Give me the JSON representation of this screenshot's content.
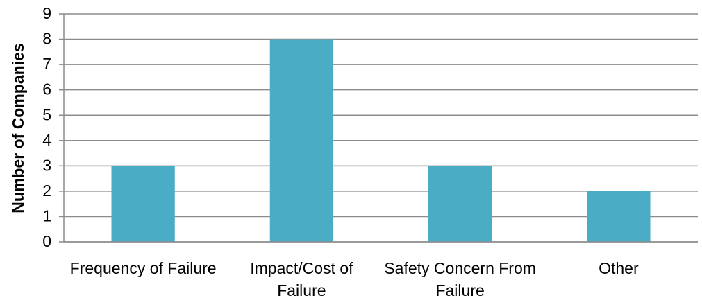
{
  "chart_data": {
    "type": "bar",
    "y_label": "Number of Companies",
    "categories": [
      "Frequency of Failure",
      "Impact/Cost of Failure",
      "Safety Concern From Failure",
      "Other"
    ],
    "values": [
      3,
      8,
      3,
      2
    ],
    "color": "#4bacc6",
    "ylim": [
      0,
      9
    ],
    "yticks": [
      0,
      1,
      2,
      3,
      4,
      5,
      6,
      7,
      8,
      9
    ],
    "grid": true
  }
}
